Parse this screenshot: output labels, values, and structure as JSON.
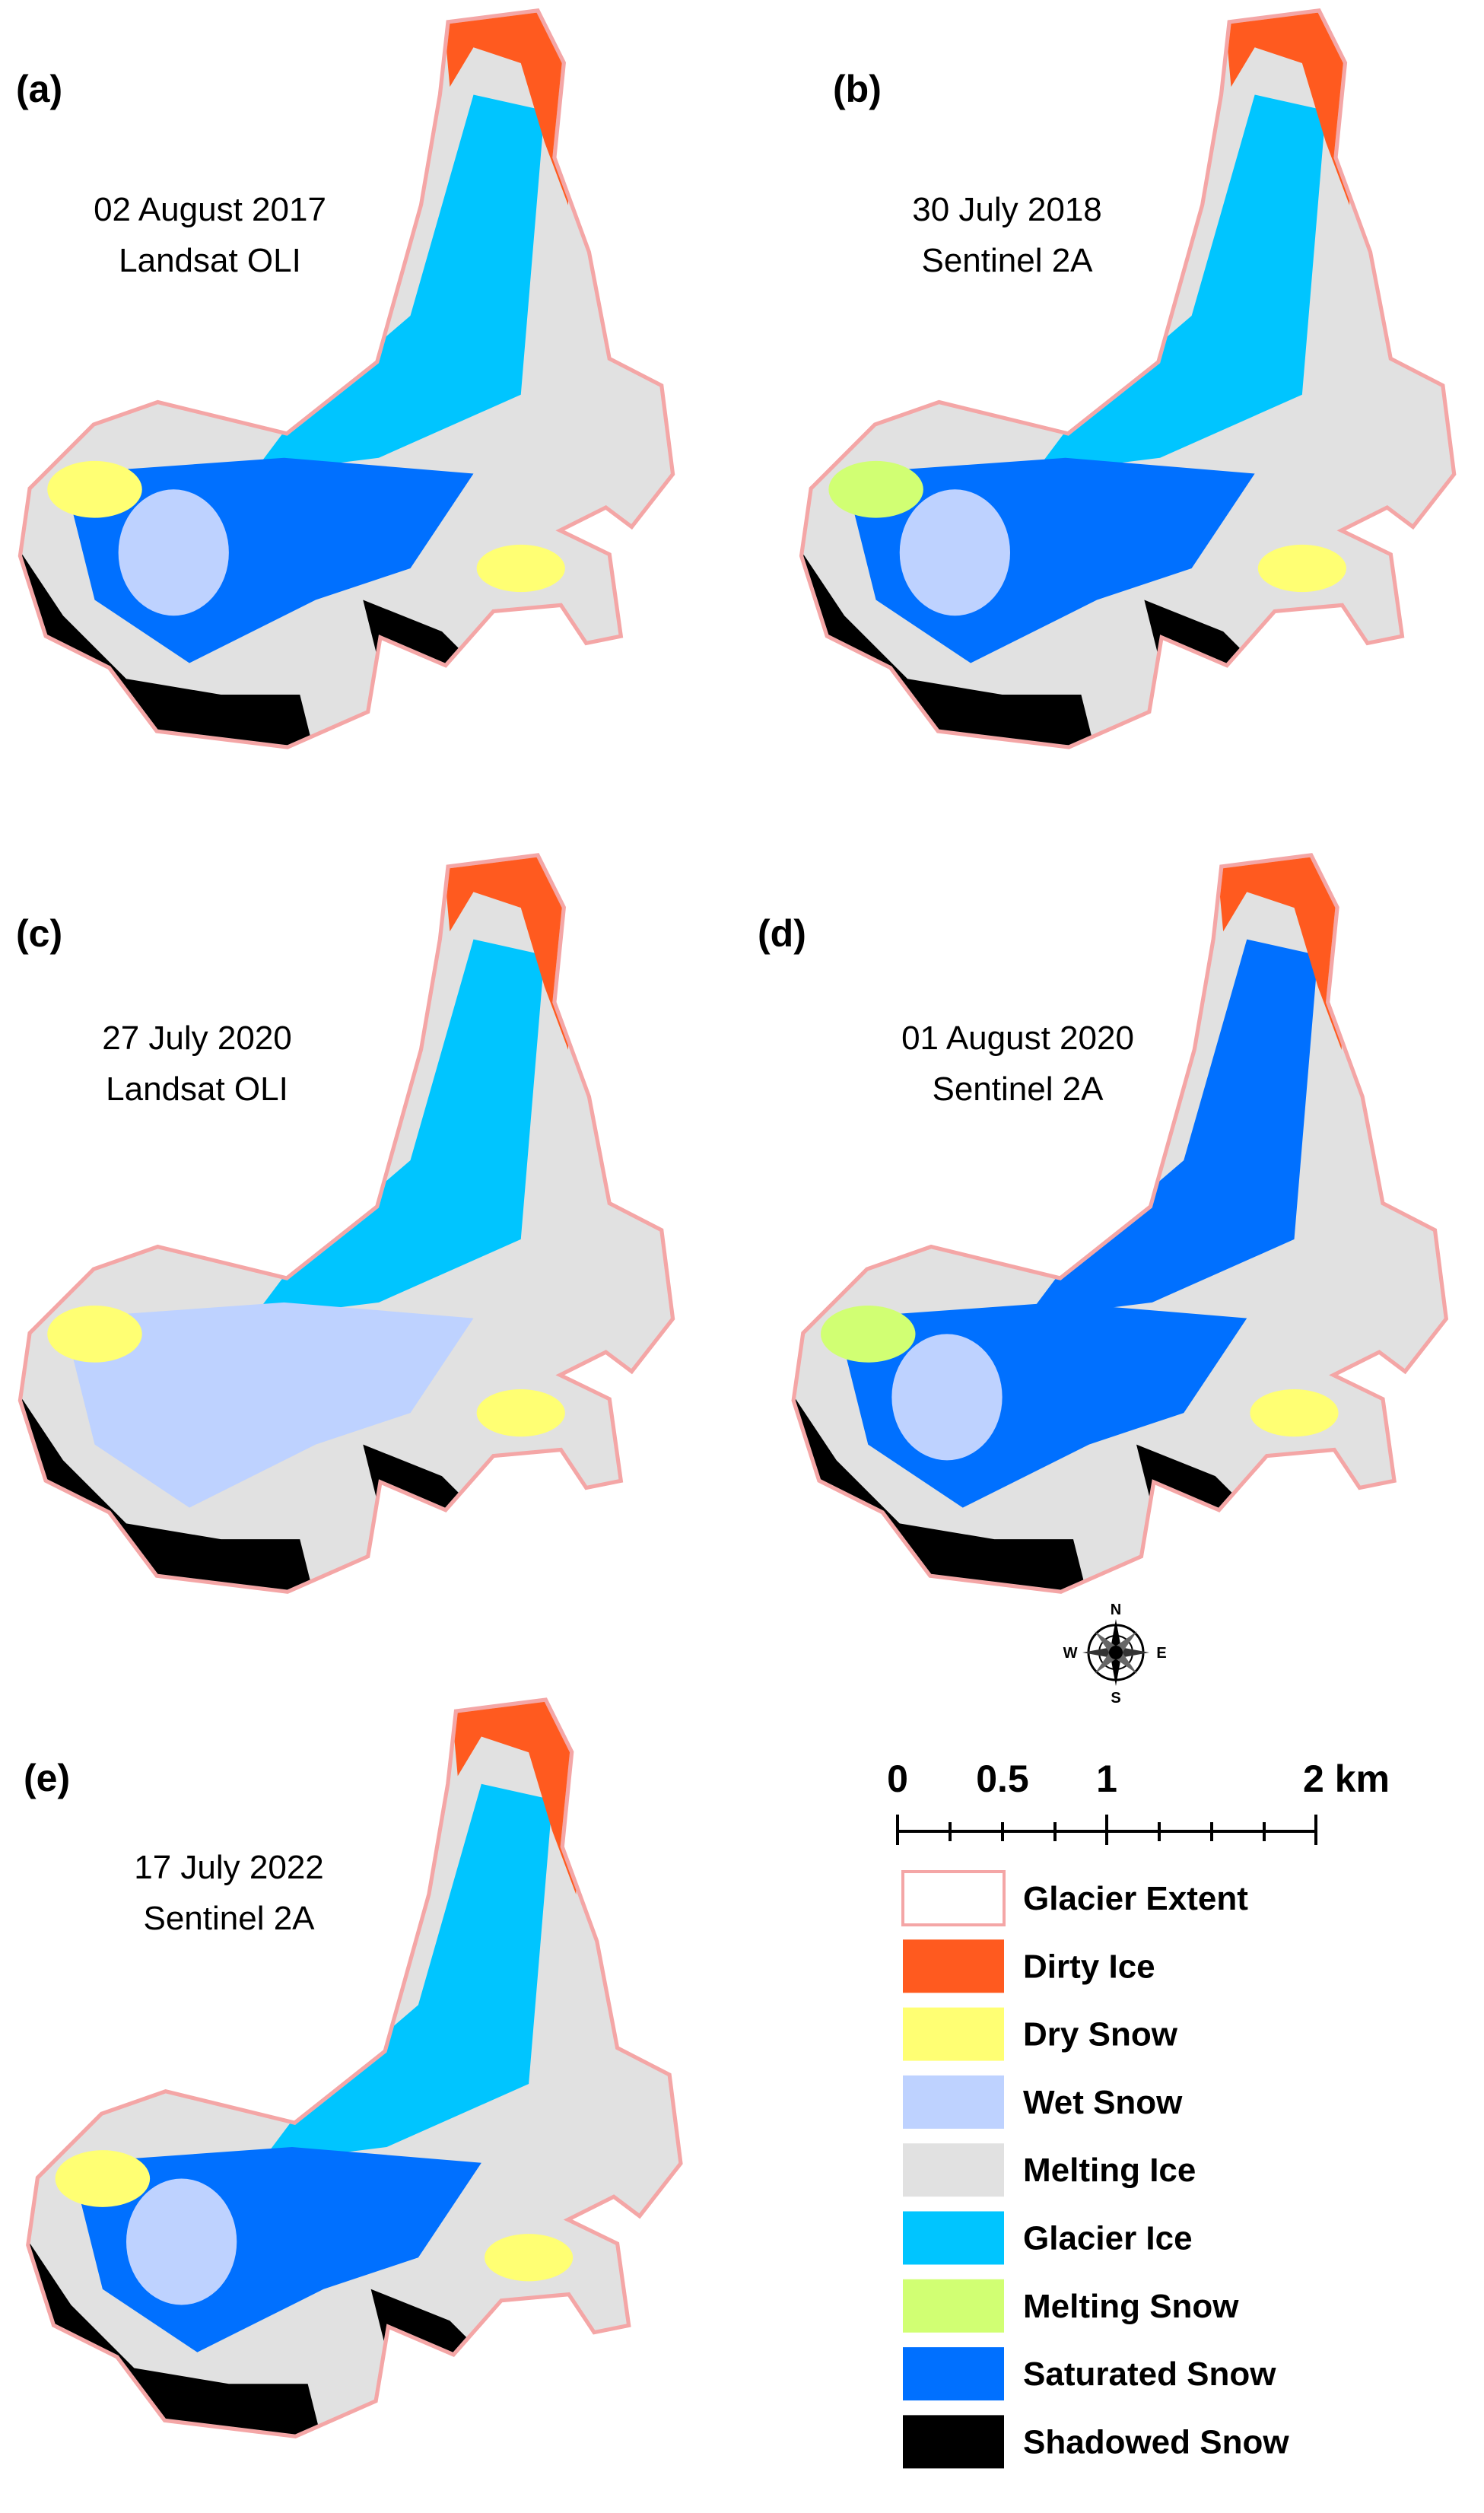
{
  "panels": [
    {
      "label": "(a)",
      "date": "02 August 2017",
      "sensor": "Landsat OLI"
    },
    {
      "label": "(b)",
      "date": "30 July 2018",
      "sensor": "Sentinel 2A"
    },
    {
      "label": "(c)",
      "date": "27 July 2020",
      "sensor": "Landsat OLI"
    },
    {
      "label": "(d)",
      "date": "01 August 2020",
      "sensor": "Sentinel 2A"
    },
    {
      "label": "(e)",
      "date": "17 July 2022",
      "sensor": "Sentinel 2A"
    }
  ],
  "compass": {
    "north": "N",
    "south": "S",
    "east": "E",
    "west": "W"
  },
  "scale_bar": {
    "ticks": [
      "0",
      "0.5",
      "1",
      "2 km"
    ]
  },
  "legend": {
    "items": [
      {
        "name": "Glacier Extent",
        "color": "#ffffff",
        "outline": "#f4a6a6"
      },
      {
        "name": "Dirty Ice",
        "color": "#ff5a1f"
      },
      {
        "name": "Dry Snow",
        "color": "#ffff73"
      },
      {
        "name": "Wet Snow",
        "color": "#bed2ff"
      },
      {
        "name": "Melting Ice",
        "color": "#e1e1e1"
      },
      {
        "name": "Glacier Ice",
        "color": "#00c5ff"
      },
      {
        "name": "Melting Snow",
        "color": "#d1ff73"
      },
      {
        "name": "Saturated Snow",
        "color": "#0070ff"
      },
      {
        "name": "Shadowed Snow",
        "color": "#000000"
      }
    ]
  }
}
